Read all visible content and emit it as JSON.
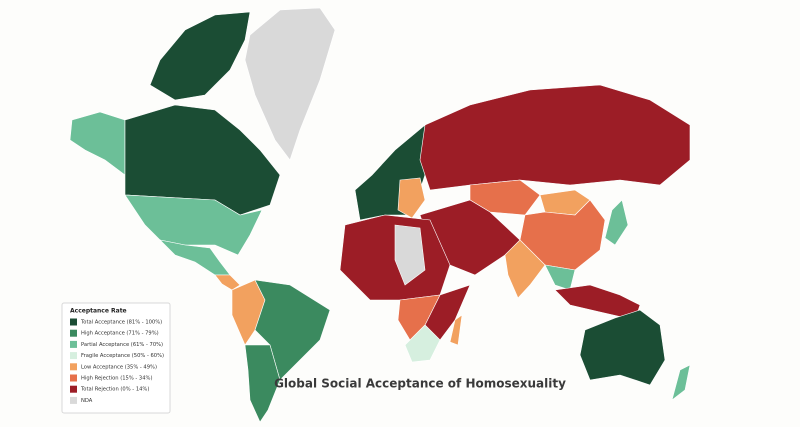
{
  "map": {
    "title": "Global Social Acceptance of Homosexuality",
    "legend": {
      "title": "Acceptance Rate",
      "items": [
        {
          "label": "Total Acceptance (81% - 100%)",
          "color": "#1b4d34"
        },
        {
          "label": "High Acceptance (71% - 79%)",
          "color": "#3b8a5f"
        },
        {
          "label": "Partial Acceptance (61% - 70%)",
          "color": "#6cbf98"
        },
        {
          "label": "Fragile Acceptance (50% - 60%)",
          "color": "#d6efdf"
        },
        {
          "label": "Low Acceptance (35% - 49%)",
          "color": "#f2a15f"
        },
        {
          "label": "High Rejection (15% - 34%)",
          "color": "#e6704b"
        },
        {
          "label": "Total Rejection (0% - 14%)",
          "color": "#9c1d26"
        },
        {
          "label": "NDA",
          "color": "#d9d9d9"
        }
      ]
    }
  }
}
